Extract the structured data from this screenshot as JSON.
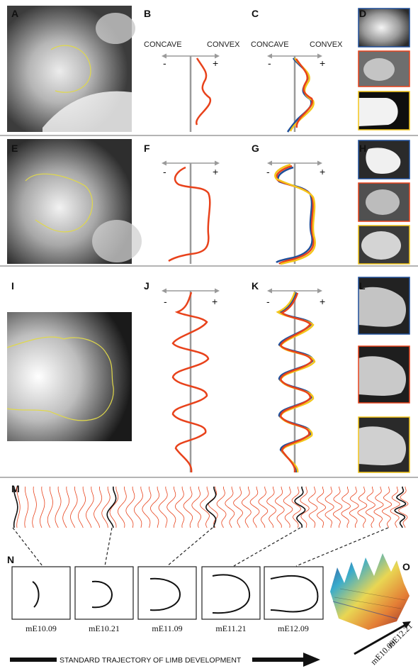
{
  "panels": {
    "A": "A",
    "B": "B",
    "C": "C",
    "D": "D",
    "E": "E",
    "F": "F",
    "G": "G",
    "H": "H",
    "I": "I",
    "J": "J",
    "K": "K",
    "L": "L",
    "M": "M",
    "N": "N",
    "O": "O"
  },
  "axis": {
    "concave": "CONCAVE",
    "convex": "CONVEX",
    "minus": "-",
    "plus": "+"
  },
  "stages": [
    "mE10.09",
    "mE10.21",
    "mE11.09",
    "mE11.21",
    "mE12.09"
  ],
  "surface_axis": {
    "start": "mE10.09",
    "end": "mE12.21"
  },
  "trajectory_label": "STANDARD TRAJECTORY OF LIMB DEVELOPMENT",
  "colors": {
    "red": "#e8421b",
    "blue": "#1f4f9a",
    "yellow": "#f4c61a",
    "axis_gray": "#9a9a9a",
    "divider": "#b4b4b4"
  }
}
